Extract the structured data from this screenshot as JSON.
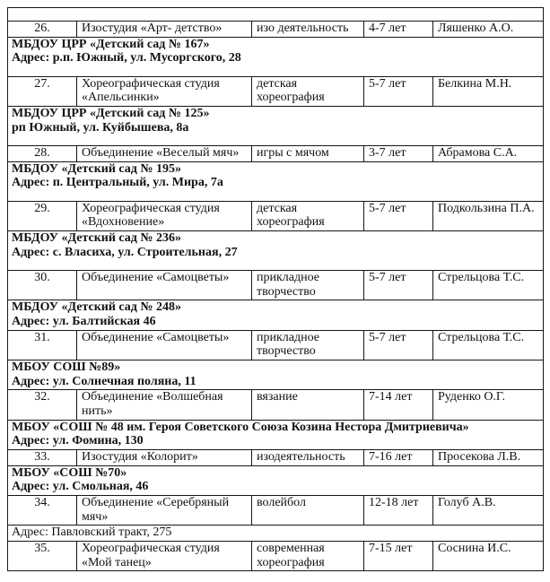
{
  "page": {
    "background": "#ffffff",
    "text_color": "#121212",
    "border_color": "#161616"
  },
  "table": {
    "rows": [
      {
        "type": "spacer"
      },
      {
        "type": "entry",
        "num": "26.",
        "name": "Изостудия «Арт- детство»",
        "activity": "изо деятельность",
        "age": "4-7 лет",
        "teacher": "Ляшенко А.О."
      },
      {
        "type": "section",
        "style": "tall",
        "bold": true,
        "lines": [
          "МБДОУ ЦРР «Детский сад № 167»",
          "Адрес: р.п. Южный, ул. Мусоргского, 28"
        ]
      },
      {
        "type": "entry",
        "num": "27.",
        "name": "Хореографическая студия «Апельсинки»",
        "activity": "детская хореография",
        "age": "5-7 лет",
        "teacher": "Белкина М.Н."
      },
      {
        "type": "section",
        "style": "tall",
        "bold": true,
        "lines": [
          "МБДОУ ЦРР «Детский сад № 125»",
          "рп Южный, ул. Куйбышева, 8а"
        ]
      },
      {
        "type": "entry",
        "num": "28.",
        "name": "Объединение «Веселый мяч»",
        "activity": "игры с мячом",
        "age": "3-7 лет",
        "teacher": "Абрамова С.А."
      },
      {
        "type": "section",
        "style": "tall",
        "bold": true,
        "lines": [
          "МБДОУ «Детский сад № 195»",
          "Адрес: п. Центральный, ул. Мира, 7а"
        ]
      },
      {
        "type": "entry",
        "num": "29.",
        "name": "Хореографическая студия «Вдохновение»",
        "activity": "детская хореография",
        "age": "5-7 лет",
        "teacher": "Подкользина П.А."
      },
      {
        "type": "section",
        "style": "tall",
        "bold": true,
        "lines": [
          "МБДОУ «Детский сад № 236»",
          "Адрес: с. Власиха, ул. Строительная, 27"
        ]
      },
      {
        "type": "entry",
        "num": "30.",
        "name": "Объединение «Самоцветы»",
        "activity": "прикладное творчество",
        "age": "5-7 лет",
        "teacher": "Стрельцова Т.С."
      },
      {
        "type": "section",
        "style": "normal",
        "bold": true,
        "lines": [
          "МБДОУ «Детский сад № 248»",
          "Адрес: ул. Балтийская 46"
        ]
      },
      {
        "type": "entry",
        "num": "31.",
        "name": "Объединение «Самоцветы»",
        "activity": "прикладное творчество",
        "age": "5-7 лет",
        "teacher": "Стрельцова Т.С."
      },
      {
        "type": "section",
        "style": "normal",
        "bold": true,
        "lines": [
          "МБОУ СОШ №89»",
          "Адрес: ул. Солнечная поляна, 11"
        ]
      },
      {
        "type": "entry",
        "num": "32.",
        "name": "Объединение «Волшебная нить»",
        "activity": "вязание",
        "age": "7-14 лет",
        "teacher": "Руденко О.Г."
      },
      {
        "type": "section",
        "style": "normal",
        "bold": true,
        "lines": [
          "МБОУ «СОШ № 48 им. Героя Советского Союза Козина Нестора Дмитриевича»",
          "Адрес: ул. Фомина, 130"
        ]
      },
      {
        "type": "entry",
        "num": "33.",
        "name": "Изостудия «Колорит»",
        "activity": "изодеятельность",
        "age": "7-16 лет",
        "teacher": "Просекова Л.В."
      },
      {
        "type": "section",
        "style": "normal",
        "bold": true,
        "lines": [
          "МБОУ «СОШ №70»",
          "Адрес: ул. Смольная, 46"
        ]
      },
      {
        "type": "entry",
        "num": "34.",
        "name": "Объединение «Серебряный мяч»",
        "activity": "волейбол",
        "age": "12-18 лет",
        "teacher": "Голуб А.В."
      },
      {
        "type": "section",
        "style": "normal",
        "bold": false,
        "lines": [
          "Адрес: Павловский тракт, 275"
        ]
      },
      {
        "type": "entry",
        "num": "35.",
        "name": "Хореографическая студия «Мой танец»",
        "activity": "современная хореография",
        "age": "7-15 лет",
        "teacher": "Соснина И.С."
      }
    ]
  }
}
